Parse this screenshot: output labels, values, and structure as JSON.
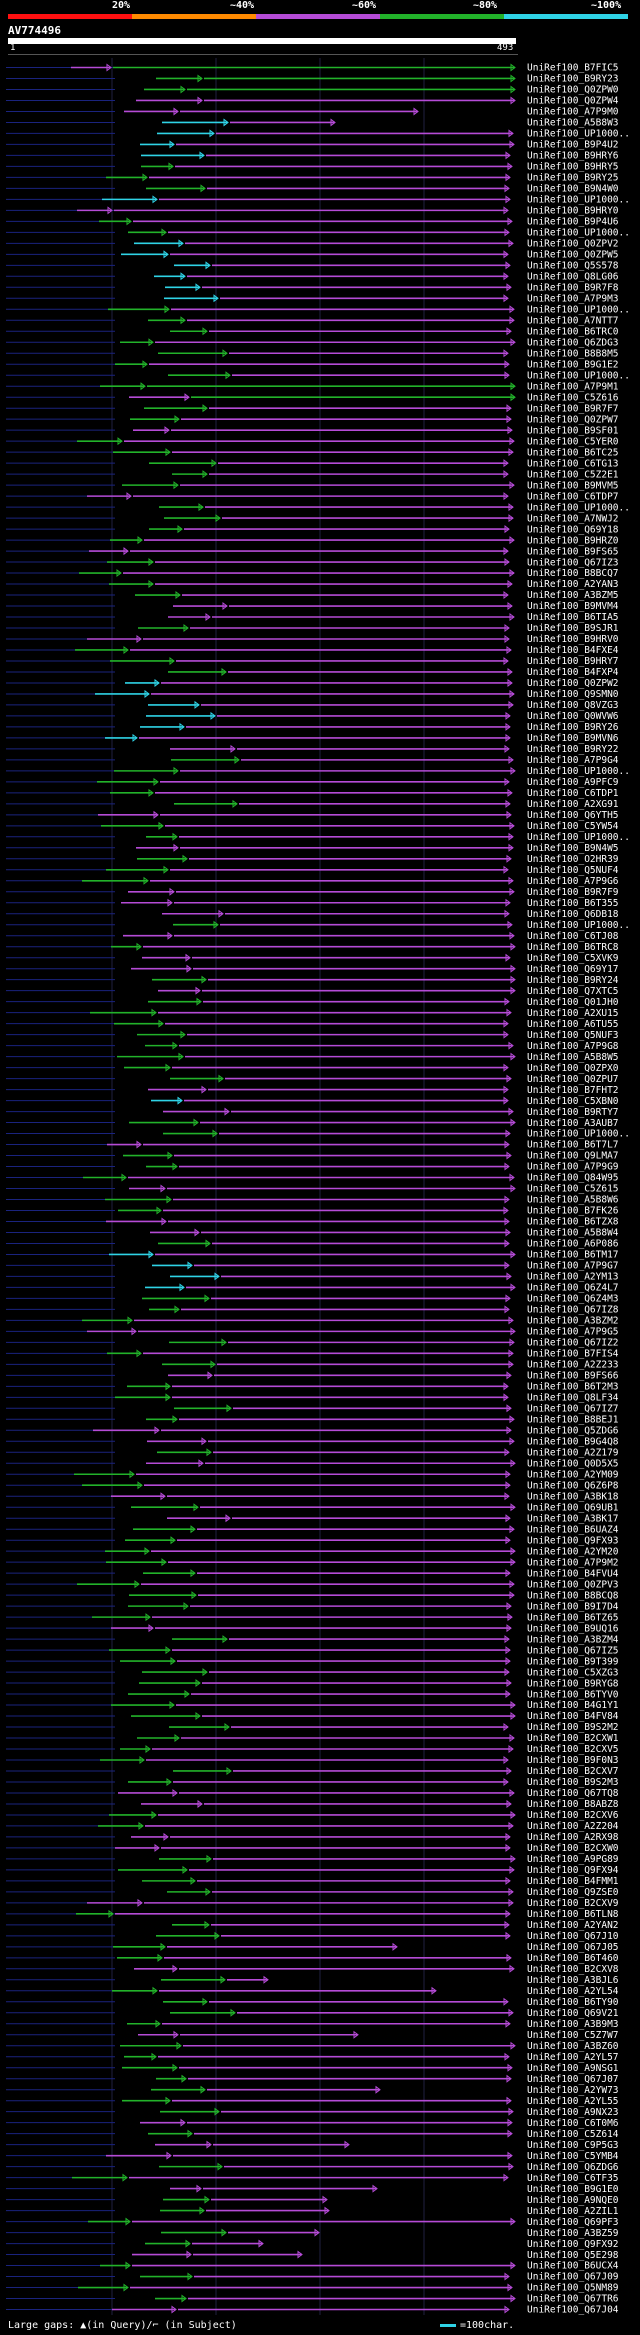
{
  "legend": {
    "labels": [
      "20%",
      "~40%",
      "~60%",
      "~80%",
      "~100%"
    ],
    "colors": [
      "#ff1010",
      "#ff8a00",
      "#b54bd6",
      "#22b22a",
      "#2fd3e6"
    ]
  },
  "query": {
    "id": "AV774496",
    "start": "1",
    "end": "493"
  },
  "hits": [
    "UniRef100_B7FIC5",
    "UniRef100_B9RY23",
    "UniRef100_Q0ZPW0",
    "UniRef100_Q0ZPW4",
    "UniRef100_A7P9M0",
    "UniRef100_A5B8W3",
    "UniRef100_UP1000..",
    "UniRef100_B9P4U2",
    "UniRef100_B9HRY6",
    "UniRef100_B9HRY5",
    "UniRef100_B9RY25",
    "UniRef100_B9N4W0",
    "UniRef100_UP1000..",
    "UniRef100_B9HRY0",
    "UniRef100_B9P4U6",
    "UniRef100_UP1000..",
    "UniRef100_Q0ZPV2",
    "UniRef100_Q0ZPW5",
    "UniRef100_Q5S578",
    "UniRef100_Q8LG06",
    "UniRef100_B9R7F8",
    "UniRef100_A7P9M3",
    "UniRef100_UP1000..",
    "UniRef100_A7NTT7",
    "UniRef100_B6TRC0",
    "UniRef100_Q6ZDG3",
    "UniRef100_B8B8M5",
    "UniRef100_B9G1E2",
    "UniRef100_UP1000..",
    "UniRef100_A7P9M1",
    "UniRef100_C5Z616",
    "UniRef100_B9R7F7",
    "UniRef100_Q0ZPW7",
    "UniRef100_B9SF01",
    "UniRef100_C5YER0",
    "UniRef100_B6TC25",
    "UniRef100_C6TG13",
    "UniRef100_C5Z2E1",
    "UniRef100_B9MVM5",
    "UniRef100_C6TDP7",
    "UniRef100_UP1000..",
    "UniRef100_A7NWJ2",
    "UniRef100_Q69Y18",
    "UniRef100_B9HRZ0",
    "UniRef100_B9FS65",
    "UniRef100_Q67IZ3",
    "UniRef100_B8BCQ7",
    "UniRef100_A2YAN3",
    "UniRef100_A3BZM5",
    "UniRef100_B9MVM4",
    "UniRef100_B6TIA5",
    "UniRef100_B9SJR1",
    "UniRef100_B9HRV0",
    "UniRef100_B4FXE4",
    "UniRef100_B9HRY7",
    "UniRef100_B4FXP4",
    "UniRef100_Q0ZPW2",
    "UniRef100_Q9SMN0",
    "UniRef100_Q8VZG3",
    "UniRef100_Q0WVW6",
    "UniRef100_B9RY26",
    "UniRef100_B9MVN6",
    "UniRef100_B9RY22",
    "UniRef100_A7P9G4",
    "UniRef100_UP1000..",
    "UniRef100_A9PFC9",
    "UniRef100_C6TDP1",
    "UniRef100_A2XG91",
    "UniRef100_Q6YTH5",
    "UniRef100_C5YW54",
    "UniRef100_UP1000..",
    "UniRef100_B9N4W5",
    "UniRef100_O2HR39",
    "UniRef100_Q5NUF4",
    "UniRef100_A7P9G6",
    "UniRef100_B9R7F9",
    "UniRef100_B6T355",
    "UniRef100_Q6DB18",
    "UniRef100_UP1000..",
    "UniRef100_C6TJ08",
    "UniRef100_B6TRC8",
    "UniRef100_C5XVK9",
    "UniRef100_Q69Y17",
    "UniRef100_B9RY24",
    "UniRef100_Q7XTC5",
    "UniRef100_Q01JH0",
    "UniRef100_A2XU15",
    "UniRef100_A6TU55",
    "UniRef100_Q5NUF3",
    "UniRef100_A7P9G8",
    "UniRef100_A5B8W5",
    "UniRef100_Q0ZPX0",
    "UniRef100_Q0ZPU7",
    "UniRef100_B7FHT2",
    "UniRef100_C5XBN0",
    "UniRef100_B9RTY7",
    "UniRef100_A3AUB7",
    "UniRef100_UP1000..",
    "UniRef100_B6T7L7",
    "UniRef100_Q9LMA7",
    "UniRef100_A7P9G9",
    "UniRef100_Q84W95",
    "UniRef100_C5Z615",
    "UniRef100_A5B8W6",
    "UniRef100_B7FK26",
    "UniRef100_B6TZX8",
    "UniRef100_A5B8W4",
    "UniRef100_A6P086",
    "UniRef100_B6TM17",
    "UniRef100_A7P9G7",
    "UniRef100_A2YM13",
    "UniRef100_Q6Z4L7",
    "UniRef100_Q6Z4M3",
    "UniRef100_Q67IZ8",
    "UniRef100_A3BZM2",
    "UniRef100_A7P9G5",
    "UniRef100_Q67IZ2",
    "UniRef100_B7FIS4",
    "UniRef100_A2Z233",
    "UniRef100_B9FS66",
    "UniRef100_B6T2M3",
    "UniRef100_Q8LF34",
    "UniRef100_Q67IZ7",
    "UniRef100_B8BEJ1",
    "UniRef100_Q5ZDG6",
    "UniRef100_B9G4Q8",
    "UniRef100_A2Z179",
    "UniRef100_Q0D5X5",
    "UniRef100_A2YM09",
    "UniRef100_Q6Z6P8",
    "UniRef100_A3BK18",
    "UniRef100_Q69UB1",
    "UniRef100_A3BK17",
    "UniRef100_B6UAZ4",
    "UniRef100_Q9FX93",
    "UniRef100_A2YM20",
    "UniRef100_A7P9M2",
    "UniRef100_B4FVU4",
    "UniRef100_Q0ZPV3",
    "UniRef100_B8BCQ8",
    "UniRef100_B9I7D4",
    "UniRef100_B6TZ65",
    "UniRef100_B9UQ16",
    "UniRef100_A3BZM4",
    "UniRef100_Q67IZ5",
    "UniRef100_B9T399",
    "UniRef100_C5XZG3",
    "UniRef100_B9RYG8",
    "UniRef100_B6TYV0",
    "UniRef100_B4G1Y1",
    "UniRef100_B4FV84",
    "UniRef100_B9S2M2",
    "UniRef100_B2CXW1",
    "UniRef100_B2CXV5",
    "UniRef100_B9F0N3",
    "UniRef100_B2CXV7",
    "UniRef100_B9S2M3",
    "UniRef100_Q67TQ8",
    "UniRef100_B8ABZ8",
    "UniRef100_B2CXV6",
    "UniRef100_A2Z204",
    "UniRef100_A2RX98",
    "UniRef100_B2CXW0",
    "UniRef100_A9PG89",
    "UniRef100_Q9FX94",
    "UniRef100_B4FMM1",
    "UniRef100_Q9ZSE0",
    "UniRef100_B2CXV9",
    "UniRef100_B6TLN8",
    "UniRef100_A2YAN2",
    "UniRef100_Q67J10",
    "UniRef100_Q67J05",
    "UniRef100_B6T460",
    "UniRef100_B2CXV8",
    "UniRef100_A3BJL6",
    "UniRef100_A2YL54",
    "UniRef100_B6TY90",
    "UniRef100_Q69V21",
    "UniRef100_A3B9M3",
    "UniRef100_C5Z7W7",
    "UniRef100_A3BZ60",
    "UniRef100_A2YL57",
    "UniRef100_A9NSG1",
    "UniRef100_Q67J07",
    "UniRef100_A2YW73",
    "UniRef100_A2YL55",
    "UniRef100_A9NX23",
    "UniRef100_C6T0M6",
    "UniRef100_C5Z614",
    "UniRef100_C9P5G3",
    "UniRef100_C5YMB4",
    "UniRef100_Q6ZDG6",
    "UniRef100_C6TF35",
    "UniRef100_B9G1E0",
    "UniRef100_A9NQE0",
    "UniRef100_A2ZIL1",
    "UniRef100_Q69PF3",
    "UniRef100_A3BZ59",
    "UniRef100_Q9FX92",
    "UniRef100_Q5E298",
    "UniRef100_B6UCX4",
    "UniRef100_Q67J09",
    "UniRef100_Q5NM89",
    "UniRef100_Q67TR6",
    "UniRef100_Q67J04"
  ]
}
